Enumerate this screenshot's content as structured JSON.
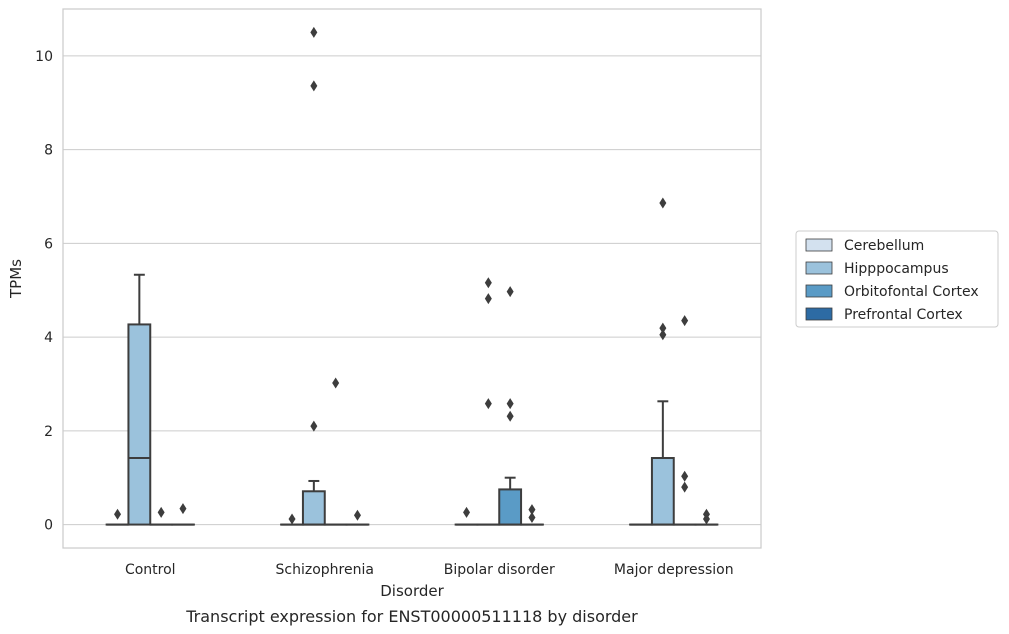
{
  "chart_data": {
    "type": "box",
    "title": "",
    "caption": "Transcript expression for ENST00000511118 by disorder",
    "xlabel": "Disorder",
    "ylabel": "TPMs",
    "ylim": [
      -0.5,
      11.0
    ],
    "yticks": [
      0,
      2,
      4,
      6,
      8,
      10
    ],
    "grid": "horizontal",
    "legend_position": "right",
    "categories": [
      "Control",
      "Schizophrenia",
      "Bipolar disorder",
      "Major depression"
    ],
    "series": [
      {
        "name": "Cerebellum",
        "color": "#d3e1ef",
        "boxes": [
          {
            "q1": 0,
            "median": 0,
            "q3": 0,
            "whisker_low": 0,
            "whisker_high": 0,
            "outliers": [
              0.22
            ]
          },
          {
            "q1": 0,
            "median": 0,
            "q3": 0,
            "whisker_low": 0,
            "whisker_high": 0,
            "outliers": [
              0.12
            ]
          },
          {
            "q1": 0,
            "median": 0,
            "q3": 0,
            "whisker_low": 0,
            "whisker_high": 0,
            "outliers": [
              0.26
            ]
          },
          {
            "q1": 0,
            "median": 0,
            "q3": 0,
            "whisker_low": 0,
            "whisker_high": 0,
            "outliers": []
          }
        ]
      },
      {
        "name": "Hipppocampus",
        "color": "#9bc2dc",
        "boxes": [
          {
            "q1": 0,
            "median": 1.42,
            "q3": 4.27,
            "whisker_low": 0,
            "whisker_high": 5.33,
            "outliers": []
          },
          {
            "q1": 0,
            "median": 0,
            "q3": 0.71,
            "whisker_low": 0,
            "whisker_high": 0.93,
            "outliers": [
              2.1,
              9.36,
              10.5
            ]
          },
          {
            "q1": 0,
            "median": 0,
            "q3": 0,
            "whisker_low": 0,
            "whisker_high": 0,
            "outliers": [
              2.58,
              4.82,
              5.16
            ]
          },
          {
            "q1": 0,
            "median": 0,
            "q3": 1.42,
            "whisker_low": 0,
            "whisker_high": 2.63,
            "outliers": [
              4.05,
              4.19,
              6.86
            ]
          }
        ]
      },
      {
        "name": "Orbitofontal Cortex",
        "color": "#5a9bc6",
        "boxes": [
          {
            "q1": 0,
            "median": 0,
            "q3": 0,
            "whisker_low": 0,
            "whisker_high": 0,
            "outliers": [
              0.26
            ]
          },
          {
            "q1": 0,
            "median": 0,
            "q3": 0,
            "whisker_low": 0,
            "whisker_high": 0,
            "outliers": [
              3.02
            ]
          },
          {
            "q1": 0,
            "median": 0,
            "q3": 0.75,
            "whisker_low": 0,
            "whisker_high": 1.0,
            "outliers": [
              2.31,
              2.58,
              4.97
            ]
          },
          {
            "q1": 0,
            "median": 0,
            "q3": 0,
            "whisker_low": 0,
            "whisker_high": 0,
            "outliers": [
              0.8,
              1.03,
              4.35
            ]
          }
        ]
      },
      {
        "name": "Prefrontal Cortex",
        "color": "#2d6ba4",
        "boxes": [
          {
            "q1": 0,
            "median": 0,
            "q3": 0,
            "whisker_low": 0,
            "whisker_high": 0,
            "outliers": [
              0.34
            ]
          },
          {
            "q1": 0,
            "median": 0,
            "q3": 0,
            "whisker_low": 0,
            "whisker_high": 0,
            "outliers": [
              0.2
            ]
          },
          {
            "q1": 0,
            "median": 0,
            "q3": 0,
            "whisker_low": 0,
            "whisker_high": 0,
            "outliers": [
              0.15,
              0.32
            ]
          },
          {
            "q1": 0,
            "median": 0,
            "q3": 0,
            "whisker_low": 0,
            "whisker_high": 0,
            "outliers": [
              0.12,
              0.22
            ]
          }
        ]
      }
    ]
  }
}
